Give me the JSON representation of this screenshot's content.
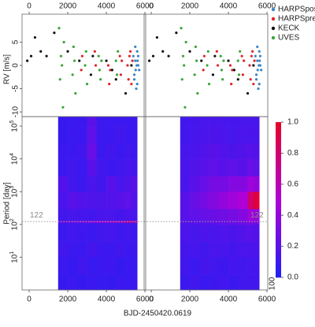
{
  "chart_data": [
    {
      "type": "scatter",
      "ylabel": "RV [m/s]",
      "xlabel": "BJD-2450420.0619",
      "xlim": [
        -370,
        6040
      ],
      "xticks": [
        0,
        2000,
        4000,
        6000
      ],
      "ylim": [
        -11,
        11
      ],
      "yticks": [
        -10,
        -5,
        0,
        5
      ],
      "legend": "right",
      "series": [
        {
          "name": "HARPSpost",
          "color": "#3a86c6",
          "x": [
            5400,
            5450,
            5500,
            5550,
            5600,
            5650,
            5700,
            5450,
            5500,
            5600,
            5650,
            5520,
            5580,
            5620
          ],
          "values": [
            2,
            -3,
            1,
            -5,
            3,
            0,
            -1,
            -2,
            4,
            -4,
            2,
            -1,
            0,
            1
          ]
        },
        {
          "name": "HARPSpre",
          "color": "#e0262a",
          "x": [
            2700,
            2750,
            3400,
            3450,
            4100,
            4150,
            4200,
            4700,
            4750,
            4800,
            5100,
            5150,
            5200,
            5250,
            5300,
            5350
          ],
          "values": [
            -1,
            2,
            3,
            0,
            0,
            -4,
            -1,
            2,
            -2,
            1,
            0,
            -3,
            2,
            3,
            -4,
            1
          ]
        },
        {
          "name": "KECK",
          "color": "#111111",
          "x": [
            -100,
            100,
            300,
            600,
            900,
            1300,
            2000,
            2600,
            3200,
            3300,
            4000,
            4300,
            4500,
            5000,
            5300
          ],
          "values": [
            1,
            2,
            6,
            3,
            2,
            7,
            3,
            1,
            -2,
            2,
            1,
            -1,
            -3,
            -6,
            0
          ]
        },
        {
          "name": "UVES",
          "color": "#3aa53a",
          "x": [
            1550,
            1600,
            1650,
            1700,
            1750,
            1800,
            2250,
            2300,
            2350,
            2400,
            2900,
            2950,
            3000,
            3600,
            3650,
            3700,
            3750,
            4500,
            4550,
            4600
          ],
          "values": [
            8,
            -3,
            2,
            0,
            -9,
            5,
            -2,
            4,
            1,
            -6,
            0,
            3,
            -4,
            2,
            -1,
            -3,
            1,
            1,
            -2,
            3
          ]
        }
      ]
    },
    {
      "type": "heatmap",
      "ylabel": "Period [day]",
      "log_y": true,
      "xlim": [
        -370,
        6040
      ],
      "xticks": [
        0,
        2000,
        4000,
        6000
      ],
      "ylim": [
        1,
        195000
      ],
      "yticks": [
        {
          "value": 10,
          "label": "10^1"
        },
        {
          "value": 100,
          "label": "10^2"
        },
        {
          "value": 1000,
          "label": "10^3"
        },
        {
          "value": 10000,
          "label": "10^4"
        },
        {
          "value": 100000,
          "label": "10^5"
        }
      ],
      "marker_line": {
        "value": 122,
        "label": "122"
      },
      "x_bins": [
        1500,
        2000,
        2500,
        3000,
        3500,
        4000,
        4500,
        5000,
        5300,
        5600
      ],
      "period_bins": [
        1,
        3,
        10,
        30,
        100,
        115,
        130,
        300,
        1000,
        3000,
        10000,
        30000,
        100000,
        195000
      ],
      "values": [
        [
          0.08,
          0.1,
          0.08,
          0.1,
          0.09,
          0.08,
          0.1,
          0.09,
          0.1
        ],
        [
          0.1,
          0.08,
          0.12,
          0.09,
          0.1,
          0.11,
          0.08,
          0.1,
          0.09
        ],
        [
          0.12,
          0.1,
          0.1,
          0.13,
          0.11,
          0.1,
          0.12,
          0.1,
          0.11
        ],
        [
          0.1,
          0.12,
          0.11,
          0.1,
          0.12,
          0.13,
          0.11,
          0.12,
          0.1
        ],
        [
          0.12,
          0.13,
          0.12,
          0.14,
          0.13,
          0.12,
          0.14,
          0.15,
          0.13
        ],
        [
          0.3,
          0.35,
          0.4,
          0.45,
          0.5,
          0.55,
          0.6,
          0.75,
          0.7
        ],
        [
          0.12,
          0.14,
          0.13,
          0.12,
          0.15,
          0.14,
          0.13,
          0.16,
          0.14
        ],
        [
          0.15,
          0.2,
          0.18,
          0.17,
          0.16,
          0.18,
          0.2,
          0.22,
          0.18
        ],
        [
          0.18,
          0.12,
          0.1,
          0.15,
          0.12,
          0.2,
          0.15,
          0.18,
          0.2
        ],
        [
          0.1,
          0.12,
          0.1,
          0.2,
          0.12,
          0.1,
          0.12,
          0.15,
          0.12
        ],
        [
          0.1,
          0.1,
          0.12,
          0.25,
          0.1,
          0.12,
          0.1,
          0.12,
          0.1
        ],
        [
          0.08,
          0.1,
          0.1,
          0.22,
          0.1,
          0.1,
          0.12,
          0.1,
          0.1
        ],
        [
          0.08,
          0.1,
          0.1,
          0.2,
          0.1,
          0.1,
          0.1,
          0.1,
          0.1
        ]
      ]
    },
    {
      "type": "heatmap",
      "log_y": true,
      "xlim": [
        -370,
        6040
      ],
      "xticks": [
        0,
        2000,
        4000,
        6000
      ],
      "ylim": [
        1,
        195000
      ],
      "marker_line": {
        "value": 122,
        "label": "122"
      },
      "x_bins": [
        1500,
        2000,
        2500,
        3000,
        3500,
        4000,
        4500,
        5000,
        5300,
        5600
      ],
      "period_bins": [
        1,
        3,
        10,
        30,
        100,
        115,
        130,
        300,
        1000,
        3000,
        10000,
        30000,
        100000,
        195000
      ],
      "values": [
        [
          0.1,
          0.12,
          0.1,
          0.11,
          0.12,
          0.1,
          0.12,
          0.13,
          0.12
        ],
        [
          0.12,
          0.1,
          0.13,
          0.12,
          0.11,
          0.13,
          0.12,
          0.14,
          0.13
        ],
        [
          0.13,
          0.14,
          0.12,
          0.15,
          0.14,
          0.13,
          0.15,
          0.16,
          0.15
        ],
        [
          0.15,
          0.14,
          0.16,
          0.15,
          0.17,
          0.16,
          0.18,
          0.2,
          0.18
        ],
        [
          0.18,
          0.2,
          0.19,
          0.22,
          0.24,
          0.25,
          0.28,
          0.32,
          0.3
        ],
        [
          0.2,
          0.2,
          0.22,
          0.24,
          0.25,
          0.28,
          0.3,
          0.35,
          0.33
        ],
        [
          0.2,
          0.22,
          0.24,
          0.26,
          0.28,
          0.3,
          0.35,
          0.45,
          0.42
        ],
        [
          0.2,
          0.25,
          0.3,
          0.35,
          0.4,
          0.45,
          0.5,
          0.8,
          0.95
        ],
        [
          0.15,
          0.2,
          0.25,
          0.3,
          0.3,
          0.35,
          0.35,
          0.45,
          0.4
        ],
        [
          0.15,
          0.18,
          0.2,
          0.22,
          0.2,
          0.22,
          0.2,
          0.25,
          0.22
        ],
        [
          0.14,
          0.15,
          0.18,
          0.2,
          0.18,
          0.16,
          0.18,
          0.2,
          0.18
        ],
        [
          0.12,
          0.14,
          0.15,
          0.16,
          0.15,
          0.14,
          0.15,
          0.16,
          0.15
        ],
        [
          0.12,
          0.13,
          0.14,
          0.15,
          0.14,
          0.13,
          0.14,
          0.15,
          0.14
        ]
      ],
      "clim": [
        0,
        1
      ],
      "colorbar_ticks": [
        {
          "value": 0,
          "label": "0.0"
        },
        0.2,
        0.4,
        0.6,
        0.8,
        {
          "value": 1,
          "label": "1.0"
        }
      ],
      "corner_label": "100"
    }
  ]
}
